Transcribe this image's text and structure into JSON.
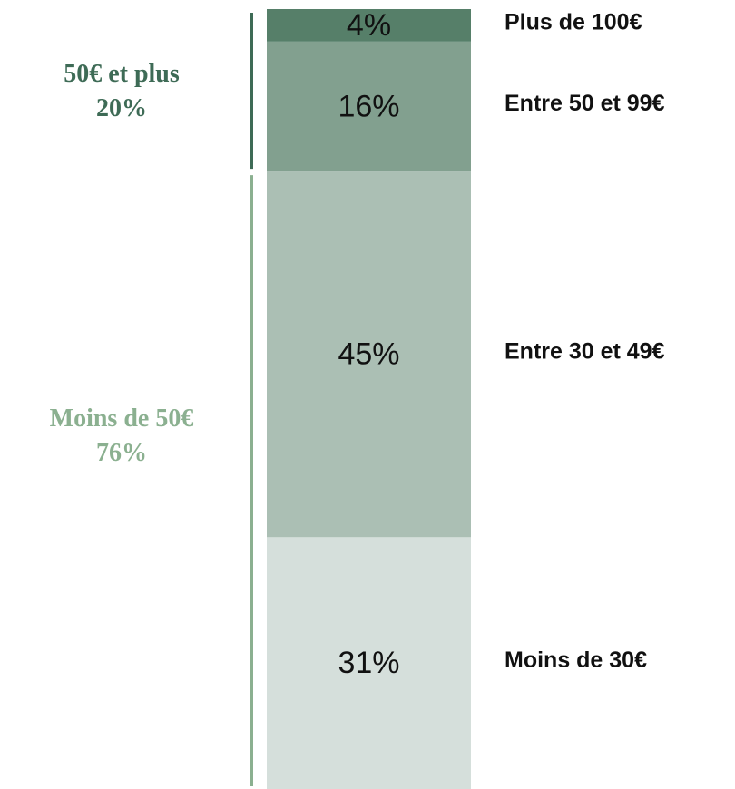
{
  "chart_data": {
    "type": "stacked-bar",
    "series": [
      {
        "name": "Moins de 30€",
        "color": "#d5dfdb",
        "values": [
          31
        ],
        "value_labels": [
          "31%"
        ]
      },
      {
        "name": "Entre 30 et 49€",
        "color": "#abbfb4",
        "values": [
          45
        ],
        "value_labels": [
          "45%"
        ]
      },
      {
        "name": "Entre 50 et 99€",
        "color": "#82a08f",
        "values": [
          16
        ],
        "value_labels": [
          "16%"
        ]
      },
      {
        "name": "Plus de 100€",
        "color": "#567f69",
        "values": [
          4
        ],
        "value_labels": [
          "4%"
        ]
      }
    ],
    "groups": [
      {
        "name": "Moins de 50€",
        "color": "#8bb090",
        "values": [
          76
        ],
        "value_labels": [
          "76%"
        ]
      },
      {
        "name": "50€ et plus",
        "color": "#3e6b56",
        "values": [
          20
        ],
        "value_labels": [
          "20%"
        ]
      }
    ]
  }
}
